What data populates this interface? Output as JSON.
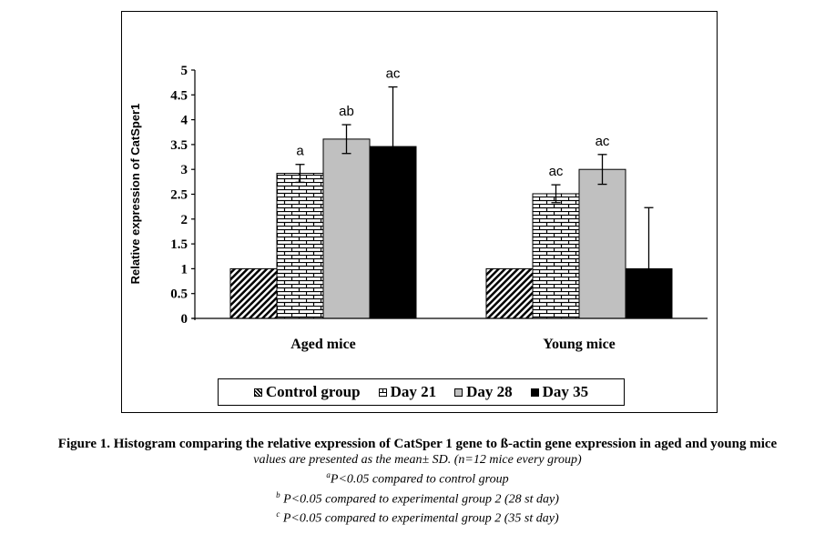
{
  "chart_data": {
    "type": "bar",
    "title": "",
    "xlabel": "",
    "ylabel": "Relative expression of CatSper1",
    "ylim": [
      0,
      5
    ],
    "yticks": [
      "0",
      "0.5",
      "1",
      "1.5",
      "2",
      "2.5",
      "3",
      "3.5",
      "4",
      "4.5",
      "5"
    ],
    "grid": false,
    "legend_position": "bottom",
    "categories": [
      "Aged mice",
      "Young mice"
    ],
    "series": [
      {
        "name": "Control group",
        "pattern": "diagonal-hatch",
        "values": [
          1.0,
          1.0
        ],
        "errors": [
          0.0,
          0.0
        ],
        "annotations": [
          "",
          ""
        ]
      },
      {
        "name": "Day 21",
        "pattern": "brick",
        "values": [
          2.92,
          2.51
        ],
        "errors": [
          0.18,
          0.18
        ],
        "annotations": [
          "a",
          "ac"
        ]
      },
      {
        "name": "Day 28",
        "pattern": "solid",
        "color": "#c0c0c0",
        "values": [
          3.61,
          3.0
        ],
        "errors": [
          0.29,
          0.3
        ],
        "annotations": [
          "ab",
          "ac"
        ]
      },
      {
        "name": "Day 35",
        "pattern": "solid",
        "color": "#000000",
        "values": [
          3.46,
          1.0
        ],
        "errors": [
          1.2,
          1.23
        ],
        "annotations": [
          "ac",
          ""
        ]
      }
    ]
  },
  "caption": {
    "title": "Figure 1. Histogram comparing the relative expression of CatSper  1 gene to ß-actin gene expression in aged and young  mice",
    "note": "values are presented as the mean± SD. (n=12 mice every group)",
    "footnotes": [
      {
        "mark": "a",
        "text": "P<0.05 compared to control group"
      },
      {
        "mark": "b",
        "text": " P<0.05 compared to experimental group 2 (28 st day)"
      },
      {
        "mark": "c",
        "text": " P<0.05 compared to experimental group 2 (35 st day)"
      }
    ]
  }
}
